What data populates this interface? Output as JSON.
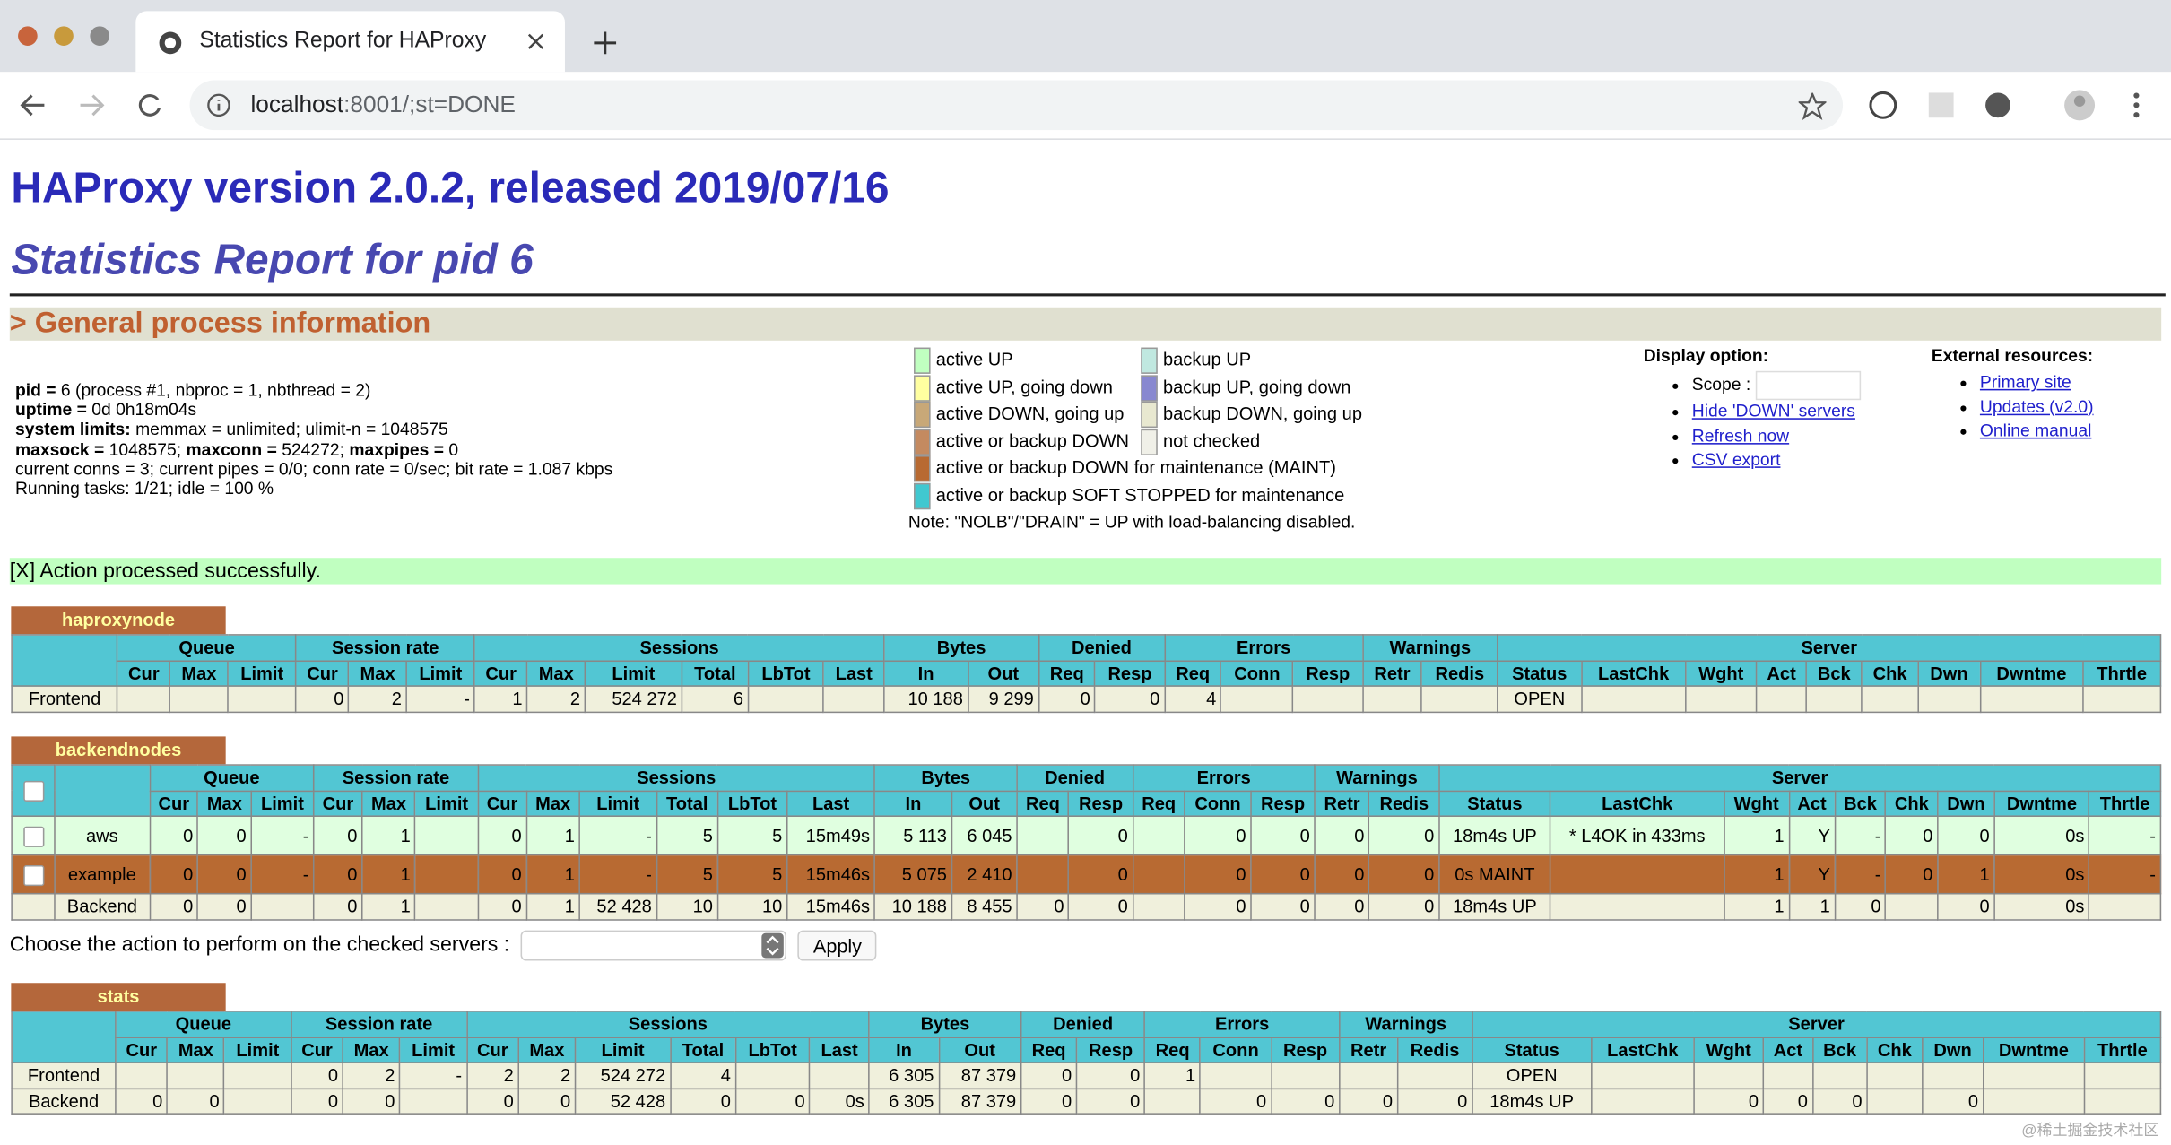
{
  "browser": {
    "tab_title": "Statistics Report for HAProxy",
    "url_host": "localhost",
    "url_rest": ":8001/;st=DONE"
  },
  "header": {
    "title": "HAProxy version 2.0.2, released 2019/07/16",
    "subtitle": "Statistics Report for pid 6"
  },
  "general": {
    "section_title": "> General process information",
    "info": [
      [
        {
          "text": "pid = ",
          "bold": true
        },
        {
          "text": "6 (process #1, nbproc = 1, nbthread = 2)",
          "bold": false
        }
      ],
      [
        {
          "text": "uptime = ",
          "bold": true
        },
        {
          "text": "0d 0h18m04s",
          "bold": false
        }
      ],
      [
        {
          "text": "system limits:",
          "bold": true
        },
        {
          "text": " memmax = unlimited; ulimit-n = 1048575",
          "bold": false
        }
      ],
      [
        {
          "text": "maxsock = ",
          "bold": true
        },
        {
          "text": "1048575; ",
          "bold": false
        },
        {
          "text": "maxconn = ",
          "bold": true
        },
        {
          "text": "524272; ",
          "bold": false
        },
        {
          "text": "maxpipes = ",
          "bold": true
        },
        {
          "text": "0",
          "bold": false
        }
      ],
      [
        {
          "text": "current conns = 3; current pipes = 0/0; conn rate = 0/sec; bit rate = 1.087 kbps",
          "bold": false
        }
      ],
      [
        {
          "text": "Running tasks: 1/21; idle = 100 %",
          "bold": false
        }
      ]
    ],
    "legend_left": [
      {
        "label": "active UP",
        "color": "#c0ffc0"
      },
      {
        "label": "active UP, going down",
        "color": "#ffffa0"
      },
      {
        "label": "active DOWN, going up",
        "color": "#c8a878"
      },
      {
        "label": "active or backup DOWN",
        "color": "#c48a60"
      },
      {
        "label": "active or backup DOWN for maintenance (MAINT)",
        "color": "#b86a32"
      },
      {
        "label": "active or backup SOFT STOPPED for maintenance",
        "color": "#40c8d0"
      }
    ],
    "legend_right": [
      {
        "label": "backup UP",
        "color": "#c0e8e0"
      },
      {
        "label": "backup UP, going down",
        "color": "#8888d0"
      },
      {
        "label": "backup DOWN, going up",
        "color": "#e8e8d0"
      },
      {
        "label": "not checked",
        "color": "#f0f0e8"
      }
    ],
    "legend_note": "Note: \"NOLB\"/\"DRAIN\" = UP with load-balancing disabled.",
    "display_title": "Display option:",
    "scope_label": "Scope :",
    "display_links": [
      "Hide 'DOWN' servers",
      "Refresh now",
      "CSV export"
    ],
    "external_title": "External resources:",
    "external_links": [
      "Primary site",
      "Updates (v2.0)",
      "Online manual"
    ]
  },
  "message": "[X] Action processed successfully.",
  "groups": [
    {
      "name": "Queue",
      "span": 3
    },
    {
      "name": "Session rate",
      "span": 3
    },
    {
      "name": "Sessions",
      "span": 6
    },
    {
      "name": "Bytes",
      "span": 2
    },
    {
      "name": "Denied",
      "span": 2
    },
    {
      "name": "Errors",
      "span": 3
    },
    {
      "name": "Warnings",
      "span": 2
    },
    {
      "name": "Server",
      "span": 9
    }
  ],
  "columns": [
    "Cur",
    "Max",
    "Limit",
    "Cur",
    "Max",
    "Limit",
    "Cur",
    "Max",
    "Limit",
    "Total",
    "LbTot",
    "Last",
    "In",
    "Out",
    "Req",
    "Resp",
    "Req",
    "Conn",
    "Resp",
    "Retr",
    "Redis",
    "Status",
    "LastChk",
    "Wght",
    "Act",
    "Bck",
    "Chk",
    "Dwn",
    "Dwntme",
    "Thrtle"
  ],
  "proxies": [
    {
      "name": "haproxynode",
      "checkboxes": false,
      "rows": [
        {
          "class": "frontend",
          "cells": [
            "Frontend",
            null,
            null,
            null,
            "0",
            "2",
            "-",
            "1",
            "2",
            "524 272",
            "6",
            null,
            null,
            "10 188",
            "9 299",
            "0",
            "0",
            "4",
            null,
            null,
            null,
            null,
            "OPEN",
            null,
            null,
            null,
            null,
            null,
            null,
            null,
            null
          ]
        }
      ]
    },
    {
      "name": "backendnodes",
      "checkboxes": true,
      "rows": [
        {
          "class": "active_up",
          "checkbox": true,
          "cells": [
            "aws",
            "0",
            "0",
            "-",
            "0",
            "1",
            null,
            "0",
            "1",
            "-",
            "5",
            "5",
            "15m49s",
            "5 113",
            "6 045",
            null,
            "0",
            null,
            "0",
            "0",
            "0",
            "0",
            "18m4s UP",
            "* L4OK in 433ms",
            "1",
            "Y",
            "-",
            "0",
            "0",
            "0s",
            "-"
          ]
        },
        {
          "class": "maint",
          "checkbox": true,
          "cells": [
            "example",
            "0",
            "0",
            "-",
            "0",
            "1",
            null,
            "0",
            "1",
            "-",
            "5",
            "5",
            "15m46s",
            "5 075",
            "2 410",
            null,
            "0",
            null,
            "0",
            "0",
            "0",
            "0",
            "0s MAINT",
            null,
            "1",
            "Y",
            "-",
            "0",
            "1",
            "0s",
            "-"
          ]
        },
        {
          "class": "backend",
          "checkbox": false,
          "cells": [
            "Backend",
            "0",
            "0",
            null,
            "0",
            "1",
            null,
            "0",
            "1",
            "52 428",
            "10",
            "10",
            "15m46s",
            "10 188",
            "8 455",
            "0",
            "0",
            null,
            "0",
            "0",
            "0",
            "0",
            "18m4s UP",
            null,
            "1",
            "1",
            "0",
            null,
            "0",
            "0s",
            null
          ]
        }
      ]
    },
    {
      "name": "stats",
      "checkboxes": false,
      "rows": [
        {
          "class": "frontend",
          "cells": [
            "Frontend",
            null,
            null,
            null,
            "0",
            "2",
            "-",
            "2",
            "2",
            "524 272",
            "4",
            null,
            null,
            "6 305",
            "87 379",
            "0",
            "0",
            "1",
            null,
            null,
            null,
            null,
            "OPEN",
            null,
            null,
            null,
            null,
            null,
            null,
            null,
            null
          ]
        },
        {
          "class": "backend",
          "cells": [
            "Backend",
            "0",
            "0",
            null,
            "0",
            "0",
            null,
            "0",
            "0",
            "52 428",
            "0",
            "0",
            "0s",
            "6 305",
            "87 379",
            "0",
            "0",
            null,
            "0",
            "0",
            "0",
            "0",
            "18m4s UP",
            null,
            "0",
            "0",
            "0",
            null,
            "0",
            null,
            null
          ]
        }
      ]
    }
  ],
  "action_prompt": "Choose the action to perform on the checked servers :",
  "apply_button": "Apply",
  "watermark": "@稀土掘金技术社区"
}
